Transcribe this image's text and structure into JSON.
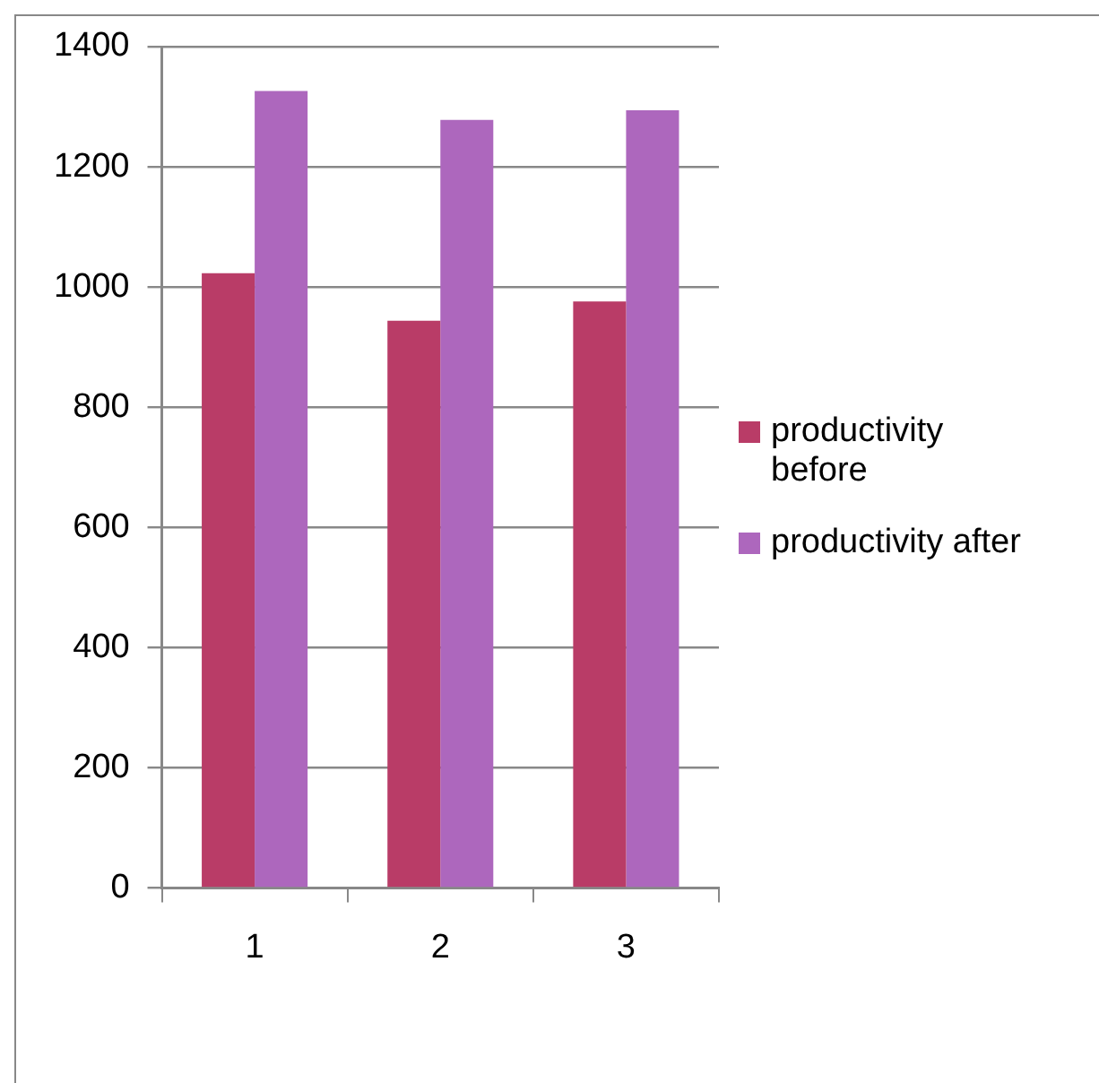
{
  "chart_data": {
    "type": "bar",
    "categories": [
      "1",
      "2",
      "3"
    ],
    "series": [
      {
        "name": "productivity before",
        "color": "#b93c67",
        "values": [
          1023,
          944,
          976
        ]
      },
      {
        "name": "productivity after",
        "color": "#ad67bd",
        "values": [
          1326,
          1278,
          1294
        ]
      }
    ],
    "ylim": [
      0,
      1400
    ],
    "yticks": [
      0,
      200,
      400,
      600,
      800,
      1000,
      1200,
      1400
    ],
    "grid": "y",
    "legend": "right"
  }
}
